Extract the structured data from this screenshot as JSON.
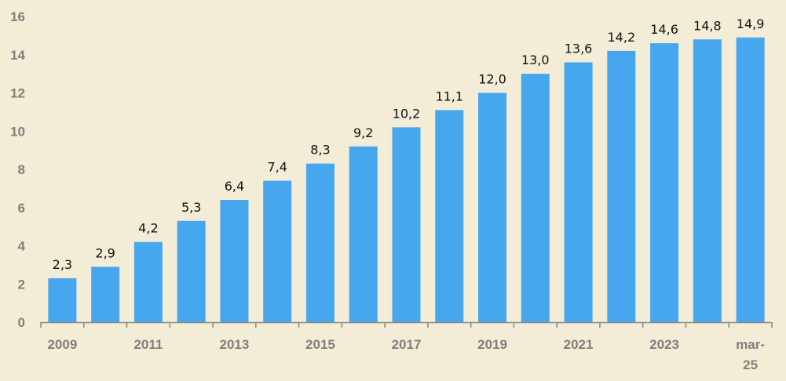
{
  "chart_data": {
    "type": "bar",
    "title": "",
    "xlabel": "",
    "ylabel": "",
    "categories": [
      "2009",
      "",
      "2011",
      "",
      "2013",
      "",
      "2015",
      "",
      "2017",
      "",
      "2019",
      "",
      "2021",
      "",
      "2023",
      "",
      "mar-25"
    ],
    "values": [
      2.3,
      2.9,
      4.2,
      5.3,
      6.4,
      7.4,
      8.3,
      9.2,
      10.2,
      11.1,
      12.0,
      13.0,
      13.6,
      14.2,
      14.6,
      14.8,
      14.9
    ],
    "data_labels": [
      "2,3",
      "2,9",
      "4,2",
      "5,3",
      "6,4",
      "7,4",
      "8,3",
      "9,2",
      "10,2",
      "11,1",
      "12,0",
      "13,0",
      "13,6",
      "14,2",
      "14,6",
      "14,8",
      "14,9"
    ],
    "ylim": [
      0,
      16
    ],
    "yticks": [
      "0",
      "2",
      "4",
      "6",
      "8",
      "10",
      "12",
      "14",
      "16"
    ],
    "grid": false,
    "legend": "none",
    "bar_color": "#47a7ee",
    "background": "#f3ecd6"
  }
}
